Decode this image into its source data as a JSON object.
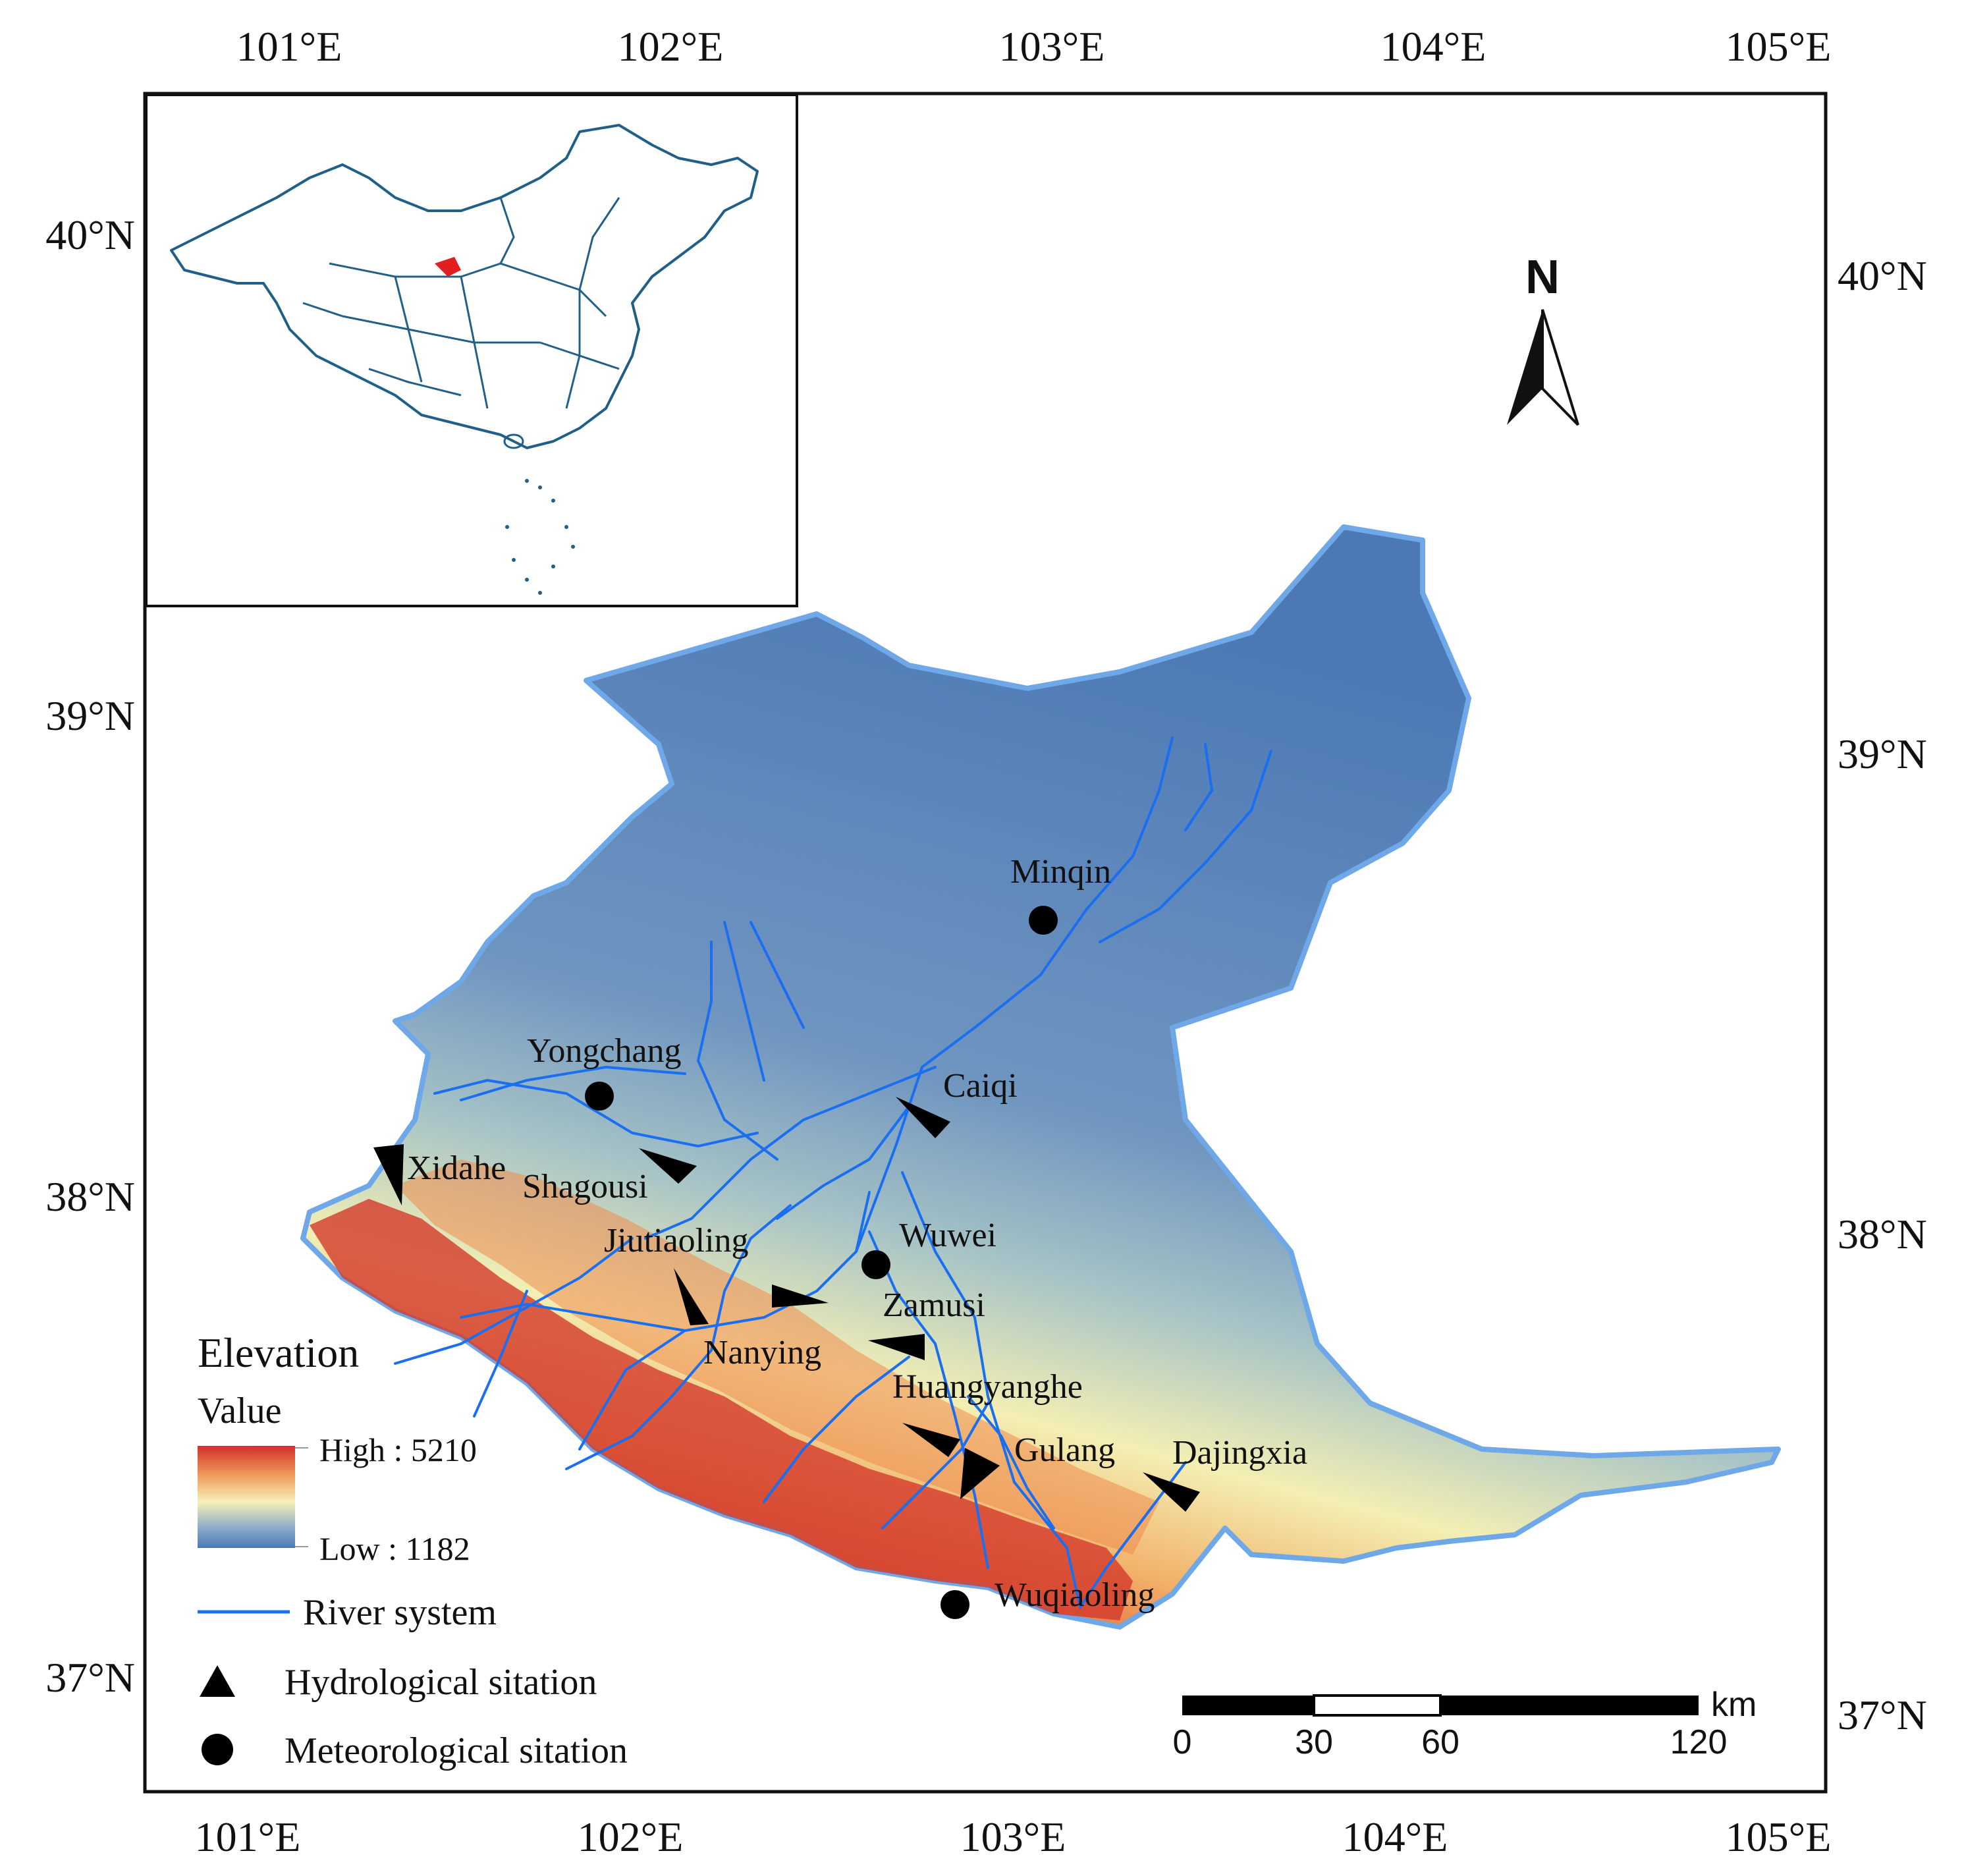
{
  "colors": {
    "basin_outline": "#6fa8e8",
    "river": "#1a6ff0",
    "low": "#4c7ab8",
    "mid": "#f0efb8",
    "high": "#d7342a",
    "inset_line": "#1f5f88",
    "study_area_marker": "#e02020"
  },
  "axes": {
    "top_lon": [
      "101°E",
      "102°E",
      "103°E",
      "104°E",
      "105°E"
    ],
    "bottom_lon": [
      "101°E",
      "102°E",
      "103°E",
      "104°E",
      "105°E"
    ],
    "left_lat": [
      "40°N",
      "39°N",
      "38°N",
      "37°N"
    ],
    "right_lat": [
      "40°N",
      "39°N",
      "38°N",
      "37°N"
    ]
  },
  "north_arrow": {
    "label": "N",
    "icon": "north-arrow-icon"
  },
  "stations": {
    "meteorological": [
      "Minqin",
      "Yongchang",
      "Wuwei",
      "Wuqiaoling"
    ],
    "hydrological": [
      "Caiqi",
      "Xidahe",
      "Shagousi",
      "Jiutiaoling",
      "Zamusi",
      "Nanying",
      "Huangyanghe",
      "Gulang",
      "Dajingxia"
    ]
  },
  "legend": {
    "title": "Elevation",
    "value_label": "Value",
    "high": "High : 5210",
    "low": "Low : 1182",
    "river": "River system",
    "hydro": "Hydrological sitation",
    "meteo": "Meteorological sitation"
  },
  "scale_bar": {
    "ticks": [
      "0",
      "30",
      "60",
      "120"
    ],
    "unit": "km"
  }
}
